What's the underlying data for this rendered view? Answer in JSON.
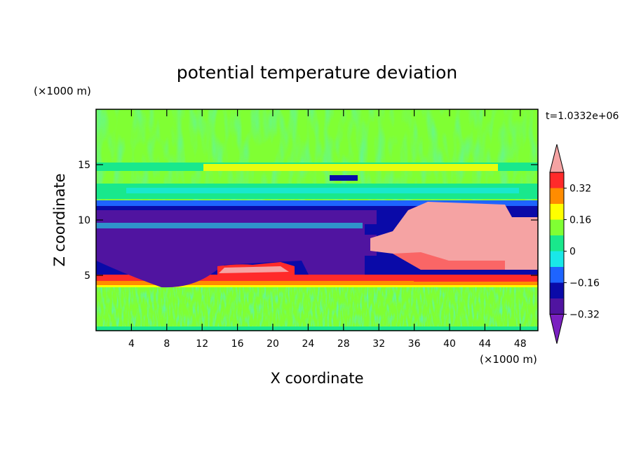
{
  "chart_data": {
    "type": "heatmap",
    "title": "potential temperature deviation",
    "xlabel": "X coordinate",
    "ylabel": "Z coordinate",
    "x_unit": "(×1000 m)",
    "y_unit": "(×1000 m)",
    "time_label": "t=1.0332e+06",
    "xlim": [
      0,
      50
    ],
    "ylim": [
      0,
      20
    ],
    "x_ticks": [
      4,
      8,
      12,
      16,
      20,
      24,
      28,
      32,
      36,
      40,
      44,
      48
    ],
    "y_ticks": [
      5,
      10,
      15
    ],
    "colorbar": {
      "labels": [
        "0.32",
        "0.16",
        "0",
        "−0.16",
        "−0.32"
      ],
      "levels": [
        0.32,
        0.16,
        0,
        -0.16,
        -0.32
      ],
      "colors": [
        "#f5a3a3",
        "#ff2a2a",
        "#ff8c00",
        "#ffff00",
        "#80ff33",
        "#19e88c",
        "#19e8e8",
        "#1e64ff",
        "#0a0aa8",
        "#5014a0",
        "#7a20c0"
      ],
      "extend": "both"
    },
    "regions": [
      {
        "z": [
          0,
          4.5
        ],
        "value": 0.05,
        "color": "#80ff33"
      },
      {
        "z": [
          4.5,
          5
        ],
        "value": 0.2,
        "color": "#ff8c00"
      },
      {
        "z": [
          5,
          6
        ],
        "value": -0.35,
        "color": "#5014a0"
      },
      {
        "z": [
          6,
          9
        ],
        "value": -0.4,
        "color": "#5014a0"
      },
      {
        "z": [
          9,
          12
        ],
        "value": -0.3,
        "color": "#0a0aa8"
      },
      {
        "z": [
          12,
          20
        ],
        "value": 0.02,
        "color": "#80ff33"
      },
      {
        "x": [
          31,
          50
        ],
        "z": [
          5.5,
          11.5
        ],
        "value": 0.4,
        "color": "#f5a3a3"
      }
    ]
  }
}
